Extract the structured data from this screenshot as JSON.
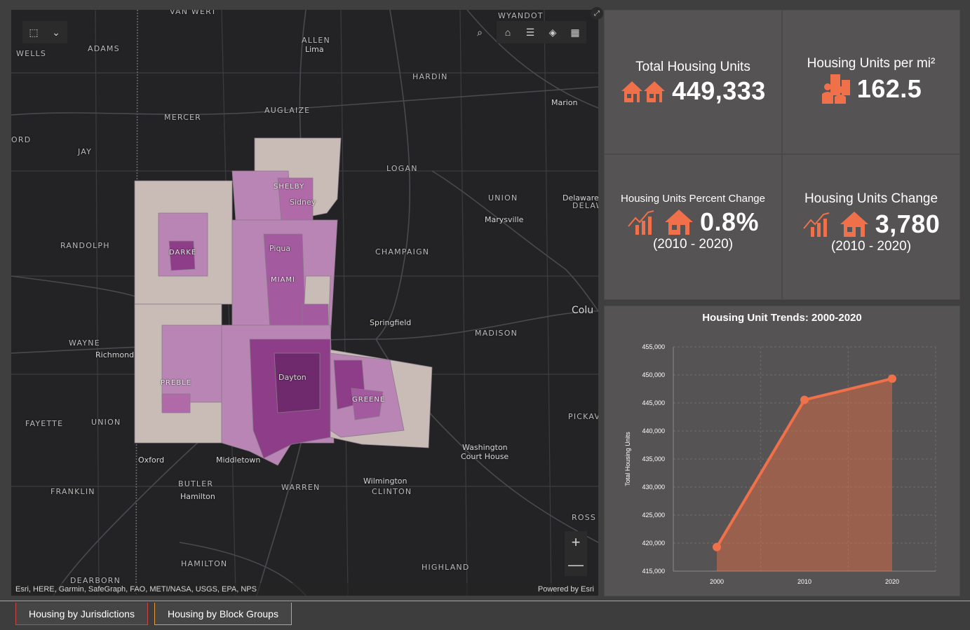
{
  "map": {
    "places": {
      "van_wert": "VAN WERT",
      "wyandot": "WYANDOT",
      "allen": "ALLEN",
      "lima": "Lima",
      "wells": "WELLS",
      "adams": "ADAMS",
      "hardin": "HARDIN",
      "mercer": "MERCER",
      "auglaize": "AUGLAIZE",
      "marion": "Marion",
      "ord": "ORD",
      "jay": "JAY",
      "logan": "LOGAN",
      "union_oh": "UNION",
      "delaware": "Delaware",
      "delaw": "DELAW",
      "marysville": "Marysville",
      "randolph": "RANDOLPH",
      "champaign": "CHAMPAIGN",
      "colu": "Colu",
      "springfield": "Springfield",
      "madison": "MADISON",
      "wayne": "WAYNE",
      "richmond": "Richmond",
      "fayette": "FAYETTE",
      "union_in": "UNION",
      "pickav": "PICKAV",
      "washington": "Washington",
      "court_house": "Court House",
      "oxford": "Oxford",
      "middletown": "Middletown",
      "butler": "BUTLER",
      "hamilton_city": "Hamilton",
      "warren": "WARREN",
      "wilmington": "Wilmington",
      "clinton": "CLINTON",
      "franklin": "FRANKLIN",
      "ross": "ROSS",
      "hamilton_county": "HAMILTON",
      "highland": "HIGHLAND",
      "dearborn": "DEARBORN"
    },
    "counties": {
      "shelby": "SHELBY",
      "sidney": "Sidney",
      "darke": "DARKE",
      "piqua": "Piqua",
      "miami": "MIAMI",
      "dayton": "Dayton",
      "preble": "PREBLE",
      "greene": "GREENE"
    },
    "attribution_left": "Esri, HERE, Garmin, SafeGraph, FAO, METI/NASA, USGS, EPA, NPS",
    "attribution_right": "Powered by Esri",
    "zoom_in": "+",
    "zoom_out": "—"
  },
  "kpis": {
    "total_units": {
      "title": "Total Housing Units",
      "value": "449,333"
    },
    "per_mi": {
      "title": "Housing Units per mi²",
      "value": "162.5"
    },
    "pct_change": {
      "title": "Housing Units Percent Change",
      "value": "0.8%",
      "period": "(2010 - 2020)"
    },
    "change": {
      "title": "Housing Units Change",
      "value": "3,780",
      "period": "(2010 - 2020)"
    }
  },
  "colors": {
    "accent": "#f0704a",
    "panel": "#555353",
    "tab_active": "#e59b3b"
  },
  "chart_data": {
    "type": "area",
    "title": "Housing Unit Trends: 2000-2020",
    "ylabel": "Total Housing Units",
    "xlabel": "",
    "categories": [
      "2000",
      "2010",
      "2020"
    ],
    "values": [
      419300,
      445553,
      449333
    ],
    "ylim": [
      415000,
      455000
    ],
    "yticks": [
      415000,
      420000,
      425000,
      430000,
      435000,
      440000,
      445000,
      450000,
      455000
    ],
    "ytick_labels": [
      "415,000",
      "420,000",
      "425,000",
      "430,000",
      "435,000",
      "440,000",
      "445,000",
      "450,000",
      "455,000"
    ],
    "grid": true,
    "color": "#f0704a"
  },
  "tabs": [
    {
      "label": "Housing by Jurisdictions"
    },
    {
      "label": "Housing by Block Groups"
    }
  ]
}
